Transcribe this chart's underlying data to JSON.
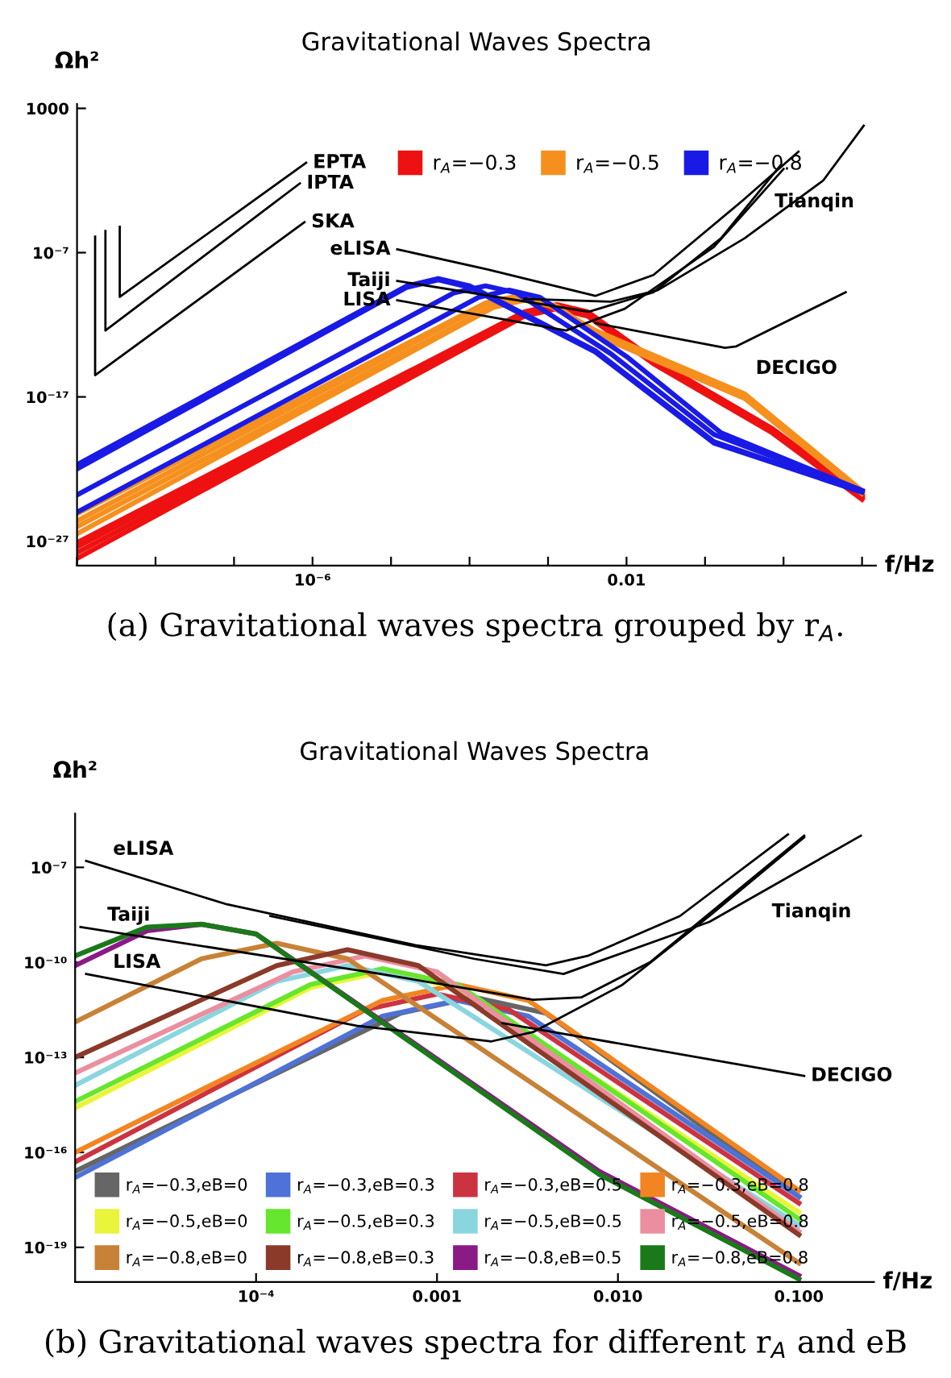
{
  "chart_data": [
    {
      "type": "line",
      "title": "Gravitational Waves Spectra",
      "xlabel": "f/Hz",
      "ylabel": "Ωh²",
      "log": "xy",
      "grid": false,
      "legend": "top",
      "xlim": [
        1e-09,
        15
      ],
      "ylim": [
        2e-29,
        2000
      ],
      "xticks": [
        {
          "value": 1e-09,
          "label": null
        },
        {
          "value": 1e-08,
          "label": null
        },
        {
          "value": 1e-07,
          "label": null
        },
        {
          "value": 1e-06,
          "label": "10⁻⁶"
        },
        {
          "value": 1e-05,
          "label": null
        },
        {
          "value": 0.0001,
          "label": null
        },
        {
          "value": 0.001,
          "label": null
        },
        {
          "value": 0.01,
          "label": "0.01"
        },
        {
          "value": 0.1,
          "label": null
        },
        {
          "value": 1,
          "label": null
        },
        {
          "value": 10,
          "label": null
        }
      ],
      "yticks": [
        {
          "value": 1e-27,
          "label": "10⁻²⁷"
        },
        {
          "value": 1e-17,
          "label": "10⁻¹⁷"
        },
        {
          "value": 1e-07,
          "label": "10⁻⁷"
        },
        1000
      ],
      "series": [
        {
          "name": "r$_{A}$=−0.3",
          "color": "#ee1111",
          "x": [
            1e-09,
            0.0005,
            0.0013,
            0.0032,
            0.022,
            0.72,
            10
          ],
          "values": [
            7.9e-28,
            7.9e-12,
            2.5e-11,
            7.9e-12,
            4e-15,
            6.3e-20,
            1.6e-24
          ]
        },
        {
          "color": "#ee1111",
          "x": [
            1e-09,
            0.0005,
            0.0013,
            0.0032,
            0.022,
            0.72,
            10
          ],
          "values": [
            4e-28,
            6.3e-12,
            2e-11,
            6.3e-12,
            3.2e-15,
            5e-20,
            1.3e-24
          ]
        },
        {
          "color": "#ee1111",
          "x": [
            1e-09,
            0.0005,
            0.0013,
            0.0032,
            0.022,
            0.72,
            10
          ],
          "values": [
            1.6e-28,
            5e-12,
            1.6e-11,
            5e-12,
            2.5e-15,
            4e-20,
            1e-24
          ]
        },
        {
          "color": "#ee1111",
          "x": [
            1e-09,
            0.0005,
            0.0013,
            0.0032,
            0.022,
            0.72,
            10
          ],
          "values": [
            6.3e-29,
            4e-12,
            1.3e-11,
            4e-12,
            2e-15,
            3.2e-20,
            7.9e-25
          ]
        },
        {
          "name": "r$_{A}$=−0.5",
          "color": "#f5901e",
          "x": [
            1e-09,
            0.00016,
            0.0004,
            0.001,
            0.004,
            0.32,
            10
          ],
          "values": [
            7.9e-26,
            3.2e-11,
            1e-10,
            3.2e-11,
            4e-13,
            1.6e-17,
            3.2e-24
          ]
        },
        {
          "color": "#f5901e",
          "x": [
            1e-09,
            0.00016,
            0.0004,
            0.001,
            0.004,
            0.32,
            10
          ],
          "values": [
            2.5e-26,
            2.5e-11,
            7.9e-11,
            2.5e-11,
            3.2e-13,
            1.3e-17,
            2.5e-24
          ]
        },
        {
          "color": "#f5901e",
          "x": [
            1e-09,
            0.0002,
            0.0005,
            0.0013,
            0.004,
            0.32,
            10
          ],
          "values": [
            1e-26,
            2e-11,
            6.3e-11,
            2e-11,
            2.5e-13,
            1e-17,
            2.5e-24
          ]
        },
        {
          "color": "#f5901e",
          "x": [
            1e-09,
            0.0002,
            0.0005,
            0.0013,
            0.004,
            0.32,
            10
          ],
          "values": [
            3.2e-27,
            1.6e-11,
            5e-11,
            1.6e-11,
            2e-13,
            7.9e-18,
            2e-24
          ]
        },
        {
          "name": "r$_{A}$=−0.8",
          "color": "#1a1ae6",
          "x": [
            1e-09,
            1.6e-05,
            4e-05,
            0.0001,
            0.004,
            0.13,
            10
          ],
          "values": [
            2e-22,
            5e-10,
            1.6e-09,
            5e-10,
            1.6e-14,
            7.9e-21,
            2.5e-24
          ]
        },
        {
          "color": "#1a1ae6",
          "x": [
            1e-09,
            1.6e-05,
            4e-05,
            0.0001,
            0.004,
            0.13,
            10
          ],
          "values": [
            1e-22,
            4e-10,
            1.3e-09,
            4e-10,
            1.3e-14,
            6.3e-21,
            2.5e-24
          ]
        },
        {
          "color": "#1a1ae6",
          "x": [
            1e-09,
            6.3e-05,
            0.00016,
            0.0004,
            0.0063,
            0.13,
            10
          ],
          "values": [
            1.6e-24,
            1.6e-10,
            5e-10,
            1.6e-10,
            1e-14,
            2.5e-20,
            3.2e-24
          ]
        },
        {
          "color": "#1a1ae6",
          "x": [
            1e-09,
            0.00013,
            0.00032,
            0.00079,
            0.01,
            0.16,
            10
          ],
          "values": [
            1e-25,
            7.9e-11,
            2.5e-10,
            7.9e-11,
            6.3e-15,
            3.2e-20,
            3.2e-24
          ]
        },
        {
          "name": "EPTA",
          "color": "#000000",
          "x": [
            3.5e-09,
            3.5e-09,
            8.3e-07
          ],
          "values": [
            6.3e-06,
            8.5e-11,
            0.17
          ]
        },
        {
          "name": "IPTA",
          "color": "#000000",
          "x": [
            2.3e-09,
            2.3e-09,
            6.9e-07
          ],
          "values": [
            3.2e-06,
            4e-13,
            0.0063
          ]
        },
        {
          "name": "SKA",
          "color": "#000000",
          "x": [
            1.7e-09,
            1.7e-09,
            7.9e-07
          ],
          "values": [
            1.3e-06,
            3.2e-16,
            1.3e-05
          ]
        },
        {
          "name": "eLISA",
          "color": "#000000",
          "x": [
            1.2e-05,
            0.00017,
            0.004,
            0.022,
            0.3,
            1.55
          ],
          "values": [
            1.7e-07,
            6.9e-09,
            1e-10,
            2.8e-09,
            0.0004,
            1.0
          ]
        },
        {
          "name": "Taiji",
          "color": "#000000",
          "x": [
            1.2e-05,
            0.0033,
            0.022,
            0.16,
            0.91
          ],
          "values": [
            1.1e-09,
            7.9e-12,
            1.8e-10,
            1e-06,
            0.11
          ]
        },
        {
          "name": "LISA",
          "color": "#000000",
          "x": [
            1.2e-05,
            0.0017,
            0.0095,
            0.13,
            1.0
          ],
          "values": [
            5e-11,
            4e-13,
            1.3e-11,
            2.5e-07,
            0.063
          ]
        },
        {
          "name": "Tianqin",
          "color": "#000000",
          "x": [
            0.0005,
            0.0063,
            0.025,
            0.32,
            3.2,
            10.5
          ],
          "values": [
            6.3e-11,
            4e-11,
            2.5e-10,
            1e-06,
            0.01,
            63
          ]
        },
        {
          "name": "DECIGO",
          "color": "#000000",
          "x": [
            0.004,
            0.18,
            0.25,
            6.2
          ],
          "values": [
            1.3e-12,
            2.5e-14,
            3.2e-14,
            1.8e-10
          ]
        }
      ],
      "annotations": [
        "(a) Gravitational waves spectra grouped by r$_{A}$."
      ]
    },
    {
      "type": "line",
      "title": "Gravitational Waves Spectra",
      "xlabel": "f/Hz",
      "ylabel": "Ωh²",
      "log": "xy",
      "grid": false,
      "legend": "bottom left",
      "xlim": [
        1e-05,
        0.26
      ],
      "ylim": [
        8e-21,
        5e-06
      ],
      "xticks": [
        {
          "value": 0.0001,
          "label": "10⁻⁴"
        },
        0.001,
        {
          "value": 0.01,
          "label": "0.010"
        },
        {
          "value": 0.1,
          "label": "0.100"
        }
      ],
      "yticks": [
        {
          "value": 1e-19,
          "label": "10⁻¹⁹"
        },
        {
          "value": 1e-16,
          "label": "10⁻¹⁶"
        },
        {
          "value": 1e-13,
          "label": "10⁻¹³"
        },
        {
          "value": 1e-10,
          "label": "10⁻¹⁰"
        },
        {
          "value": 1e-07,
          "label": "10⁻⁷"
        }
      ],
      "series": [
        {
          "name": "r$_{A}$=−0.3,eB=0",
          "color": "#666666",
          "x": [
            1e-05,
            0.00063,
            0.0016,
            0.004,
            0.1
          ],
          "values": [
            2.5e-17,
            2.5e-12,
            7.9e-12,
            2.5e-12,
            4e-18
          ]
        },
        {
          "name": "r$_{A}$=−0.3,eB=0.3",
          "color": "#4f72d8",
          "x": [
            1e-05,
            0.0005,
            0.0013,
            0.0032,
            0.1
          ],
          "values": [
            1.6e-17,
            2e-12,
            6.3e-12,
            2e-12,
            4e-18
          ]
        },
        {
          "name": "r$_{A}$=−0.3,eB=0.5",
          "color": "#cc3340",
          "x": [
            1e-05,
            0.0004,
            0.001,
            0.0025,
            0.1
          ],
          "values": [
            5e-17,
            3.2e-12,
            1e-11,
            3.2e-12,
            2.5e-18
          ]
        },
        {
          "name": "r$_{A}$=−0.3,eB=0.8",
          "color": "#f28522",
          "x": [
            1e-05,
            0.0005,
            0.0013,
            0.0032,
            0.1
          ],
          "values": [
            1e-16,
            6.3e-12,
            2e-11,
            6.3e-12,
            6.3e-18
          ]
        },
        {
          "name": "r$_{A}$=−0.5,eB=0",
          "color": "#e8f53a",
          "x": [
            1e-05,
            0.0002,
            0.0005,
            0.0013,
            0.1
          ],
          "values": [
            2.5e-15,
            1.6e-11,
            5e-11,
            1.6e-11,
            1.3e-18
          ]
        },
        {
          "name": "r$_{A}$=−0.5,eB=0.3",
          "color": "#66e62e",
          "x": [
            1e-05,
            0.0002,
            0.0005,
            0.0013,
            0.1
          ],
          "values": [
            4e-15,
            2e-11,
            6.3e-11,
            2e-11,
            7.9e-19
          ]
        },
        {
          "name": "r$_{A}$=−0.5,eB=0.5",
          "color": "#8ad6df",
          "x": [
            1e-05,
            0.00013,
            0.00032,
            0.00079,
            0.1
          ],
          "values": [
            1.3e-14,
            2.5e-11,
            7.9e-11,
            2.5e-11,
            5e-19
          ]
        },
        {
          "name": "r$_{A}$=−0.5,eB=0.8",
          "color": "#eb8fa0",
          "x": [
            1e-05,
            0.00016,
            0.0004,
            0.001,
            0.1
          ],
          "values": [
            3.2e-14,
            5e-11,
            1.6e-10,
            5e-11,
            3.2e-19
          ]
        },
        {
          "name": "r$_{A}$=−0.8,eB=0",
          "color": "#c88237",
          "x": [
            1e-05,
            5e-05,
            0.00013,
            0.00032,
            0.1
          ],
          "values": [
            1.3e-12,
            1.3e-10,
            4e-10,
            1.3e-10,
            3.2e-20
          ]
        },
        {
          "name": "r$_{A}$=−0.8,eB=0.3",
          "color": "#8b3a2a",
          "x": [
            1e-05,
            0.00013,
            0.00032,
            0.00079,
            0.1
          ],
          "values": [
            1e-13,
            7.9e-11,
            2.5e-10,
            7.9e-11,
            2.5e-19
          ]
        },
        {
          "name": "r$_{A}$=−0.8,eB=0.5",
          "color": "#8a1a86",
          "x": [
            1e-05,
            2.5e-05,
            5e-05,
            0.0001,
            0.0079,
            0.1
          ],
          "values": [
            7.9e-11,
            1e-09,
            1.6e-09,
            7.9e-10,
            2.5e-17,
            1.3e-20
          ]
        },
        {
          "name": "r$_{A}$=−0.8,eB=0.8",
          "color": "#1a7a1a",
          "x": [
            1e-05,
            2.5e-05,
            5e-05,
            0.0001,
            0.0079,
            0.1
          ],
          "values": [
            1.6e-10,
            1.3e-09,
            1.6e-09,
            7.9e-10,
            2e-17,
            1e-20
          ]
        },
        {
          "name": "eLISA",
          "color": "#000000",
          "x": [
            1.15e-05,
            6.9e-05,
            0.00076,
            0.004,
            0.0068,
            0.022,
            0.087
          ],
          "values": [
            1.6e-07,
            6.8e-09,
            3.5e-10,
            8.1e-11,
            1.6e-10,
            2.9e-09,
            1.1e-06
          ]
        },
        {
          "name": "Tianqin",
          "color": "#000000",
          "x": [
            0.00012,
            0.0016,
            0.005,
            0.032,
            0.22
          ],
          "values": [
            2.9e-09,
            1.3e-10,
            4.3e-11,
            1.9e-09,
            1e-06
          ]
        },
        {
          "name": "Taiji",
          "color": "#000000",
          "x": [
            1.07e-05,
            0.00049,
            0.0034,
            0.0063,
            0.015,
            0.107
          ],
          "values": [
            1.3e-09,
            4.3e-11,
            6.6e-12,
            7.9e-12,
            1e-10,
            1e-06
          ]
        },
        {
          "name": "LISA",
          "color": "#000000",
          "x": [
            1.15e-05,
            0.00036,
            0.002,
            0.0034,
            0.0105,
            0.032,
            0.107
          ],
          "values": [
            4.3e-11,
            1e-12,
            3.2e-13,
            6.3e-13,
            1.9e-11,
            2.9e-09,
            8.9e-07
          ]
        },
        {
          "name": "DECIGO",
          "color": "#000000",
          "x": [
            0.0023,
            0.107
          ],
          "values": [
            1.2e-12,
            2.6e-14
          ]
        }
      ],
      "annotations": [
        "(b) Gravitational waves spectra for different r$_{A}$ and eB"
      ]
    }
  ]
}
